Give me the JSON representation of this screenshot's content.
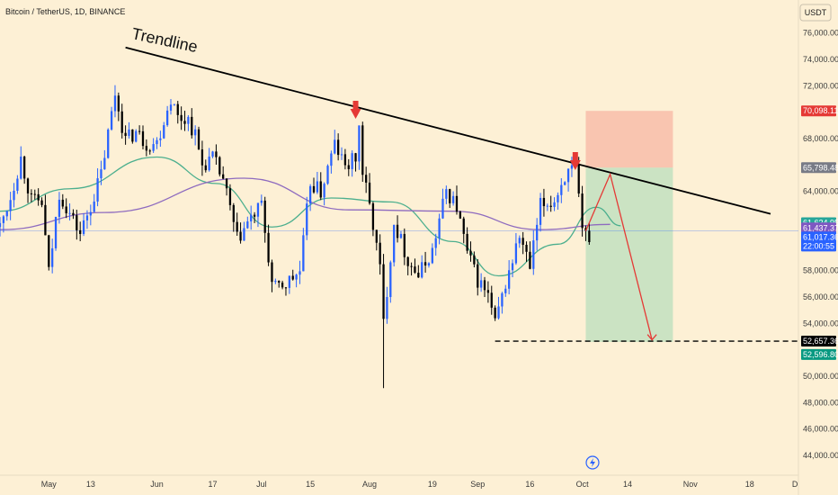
{
  "header": {
    "symbol": "Bitcoin / TetherUS, 1D, BINANCE",
    "currency": "USDT"
  },
  "chart_data": {
    "type": "candlestick",
    "title": "Bitcoin / TetherUS, 1D, BINANCE",
    "ylim": [
      42500,
      78500
    ],
    "y_ticks": [
      {
        "value": 76000,
        "label": "76,000.00"
      },
      {
        "value": 74000,
        "label": "74,000.00"
      },
      {
        "value": 72000,
        "label": "72,000.00"
      },
      {
        "value": 68000,
        "label": "68,000.00"
      },
      {
        "value": 64000,
        "label": "64,000.00"
      },
      {
        "value": 58000,
        "label": "58,000.00"
      },
      {
        "value": 56000,
        "label": "56,000.00"
      },
      {
        "value": 54000,
        "label": "54,000.00"
      },
      {
        "value": 50000,
        "label": "50,000.00"
      },
      {
        "value": 48000,
        "label": "48,000.00"
      },
      {
        "value": 46000,
        "label": "46,000.00"
      },
      {
        "value": 44000,
        "label": "44,000.00"
      }
    ],
    "x_ticks": [
      {
        "date": "2024-05-01",
        "label": "May"
      },
      {
        "date": "2024-05-13",
        "label": "13"
      },
      {
        "date": "2024-06-01",
        "label": "Jun"
      },
      {
        "date": "2024-06-17",
        "label": "17"
      },
      {
        "date": "2024-07-01",
        "label": "Jul"
      },
      {
        "date": "2024-07-15",
        "label": "15"
      },
      {
        "date": "2024-08-01",
        "label": "Aug"
      },
      {
        "date": "2024-08-19",
        "label": "19"
      },
      {
        "date": "2024-09-01",
        "label": "Sep"
      },
      {
        "date": "2024-09-16",
        "label": "16"
      },
      {
        "date": "2024-10-01",
        "label": "Oct"
      },
      {
        "date": "2024-10-14",
        "label": "14"
      },
      {
        "date": "2024-11-01",
        "label": "Nov"
      },
      {
        "date": "2024-11-18",
        "label": "18"
      },
      {
        "date": "2024-12-01",
        "label": "D"
      }
    ],
    "x_range": [
      "2024-04-17",
      "2024-12-02"
    ],
    "series": [
      {
        "kind": "ohlc",
        "up_color": "#2962ff",
        "down_color": "#000000",
        "closes": [
          [
            "2024-04-17",
            61300
          ],
          [
            "2024-04-20",
            63600
          ],
          [
            "2024-04-23",
            66500
          ],
          [
            "2024-04-26",
            63300
          ],
          [
            "2024-04-29",
            63100
          ],
          [
            "2024-05-01",
            57800
          ],
          [
            "2024-05-04",
            63900
          ],
          [
            "2024-05-07",
            62300
          ],
          [
            "2024-05-10",
            60800
          ],
          [
            "2024-05-13",
            62900
          ],
          [
            "2024-05-16",
            65300
          ],
          [
            "2024-05-20",
            71400
          ],
          [
            "2024-05-23",
            67900
          ],
          [
            "2024-05-26",
            68500
          ],
          [
            "2024-05-29",
            67600
          ],
          [
            "2024-06-01",
            67700
          ],
          [
            "2024-06-05",
            71100
          ],
          [
            "2024-06-07",
            69600
          ],
          [
            "2024-06-10",
            69500
          ],
          [
            "2024-06-12",
            68200
          ],
          [
            "2024-06-14",
            66000
          ],
          [
            "2024-06-17",
            66500
          ],
          [
            "2024-06-20",
            64900
          ],
          [
            "2024-06-24",
            60300
          ],
          [
            "2024-06-27",
            61600
          ],
          [
            "2024-07-01",
            62900
          ],
          [
            "2024-07-04",
            57000
          ],
          [
            "2024-07-05",
            56600
          ],
          [
            "2024-07-08",
            57000
          ],
          [
            "2024-07-12",
            57900
          ],
          [
            "2024-07-15",
            64700
          ],
          [
            "2024-07-18",
            63900
          ],
          [
            "2024-07-22",
            67600
          ],
          [
            "2024-07-25",
            65800
          ],
          [
            "2024-07-29",
            66800
          ],
          [
            "2024-08-02",
            61500
          ],
          [
            "2024-08-04",
            58100
          ],
          [
            "2024-08-05",
            54000
          ],
          [
            "2024-08-08",
            61700
          ],
          [
            "2024-08-12",
            58800
          ],
          [
            "2024-08-15",
            57600
          ],
          [
            "2024-08-19",
            59500
          ],
          [
            "2024-08-23",
            64100
          ],
          [
            "2024-08-26",
            62800
          ],
          [
            "2024-08-29",
            59300
          ],
          [
            "2024-09-01",
            57300
          ],
          [
            "2024-09-04",
            56100
          ],
          [
            "2024-09-06",
            53900
          ],
          [
            "2024-09-09",
            57000
          ],
          [
            "2024-09-13",
            60600
          ],
          [
            "2024-09-16",
            58200
          ],
          [
            "2024-09-19",
            62900
          ],
          [
            "2024-09-23",
            63300
          ],
          [
            "2024-09-26",
            65200
          ],
          [
            "2024-09-29",
            65600
          ],
          [
            "2024-10-01",
            60800
          ],
          [
            "2024-10-03",
            60600
          ]
        ]
      },
      {
        "kind": "ma",
        "name": "",
        "color": "#4caf8e",
        "values": [
          [
            0,
            62500
          ],
          [
            20,
            64200
          ],
          [
            45,
            66600
          ],
          [
            62,
            64600
          ],
          [
            78,
            61300
          ],
          [
            95,
            63500
          ],
          [
            112,
            63200
          ],
          [
            130,
            60200
          ],
          [
            143,
            57600
          ],
          [
            160,
            60000
          ],
          [
            171,
            62800
          ],
          [
            178,
            61400
          ]
        ]
      },
      {
        "kind": "ma",
        "name": "",
        "color": "#8e6bbf",
        "values": [
          [
            0,
            61100
          ],
          [
            30,
            62400
          ],
          [
            70,
            65000
          ],
          [
            100,
            62600
          ],
          [
            130,
            62500
          ],
          [
            155,
            61100
          ],
          [
            175,
            61500
          ]
        ]
      }
    ],
    "annotations": {
      "trendline_label": "Trendline",
      "trendline": [
        [
          "2024-05-23",
          74900
        ],
        [
          "2024-11-24",
          62300
        ]
      ],
      "markers": [
        {
          "date": "2024-07-28",
          "type": "arrow-down",
          "color": "#e53935"
        },
        {
          "date": "2024-09-29",
          "type": "arrow-down",
          "color": "#e53935"
        }
      ],
      "target_line": {
        "value": 52657.36,
        "from": "2024-09-06",
        "to": "2024-12-02"
      },
      "short_position": {
        "from": "2024-10-02",
        "to": "2024-10-27",
        "stop": 70098.11,
        "entry": 65798.48,
        "target": 52596.8
      },
      "projection_path": [
        [
          "2024-10-02",
          61000
        ],
        [
          "2024-10-09",
          65300
        ],
        [
          "2024-10-21",
          52750
        ]
      ],
      "current_price_line": 61017.36
    },
    "price_tags": [
      {
        "label": "70,098.11",
        "value": 70098.11,
        "bg": "#e53935"
      },
      {
        "label": "65,798.48",
        "value": 65798.48,
        "bg": "#787b86"
      },
      {
        "label": "61,624.95",
        "value": 61624.95,
        "bg": "#26a69a"
      },
      {
        "label": "61,437.37",
        "value": 61437.37,
        "bg": "#7e57c2"
      },
      {
        "label": "61,017.36",
        "value": 61017.36,
        "bg": "#2962ff",
        "sub": "22:00:55"
      },
      {
        "label": "52,657.36",
        "value": 52657.36,
        "bg": "#000000"
      },
      {
        "label": "52,596.80",
        "value": 52596.8,
        "bg": "#089981"
      }
    ]
  }
}
